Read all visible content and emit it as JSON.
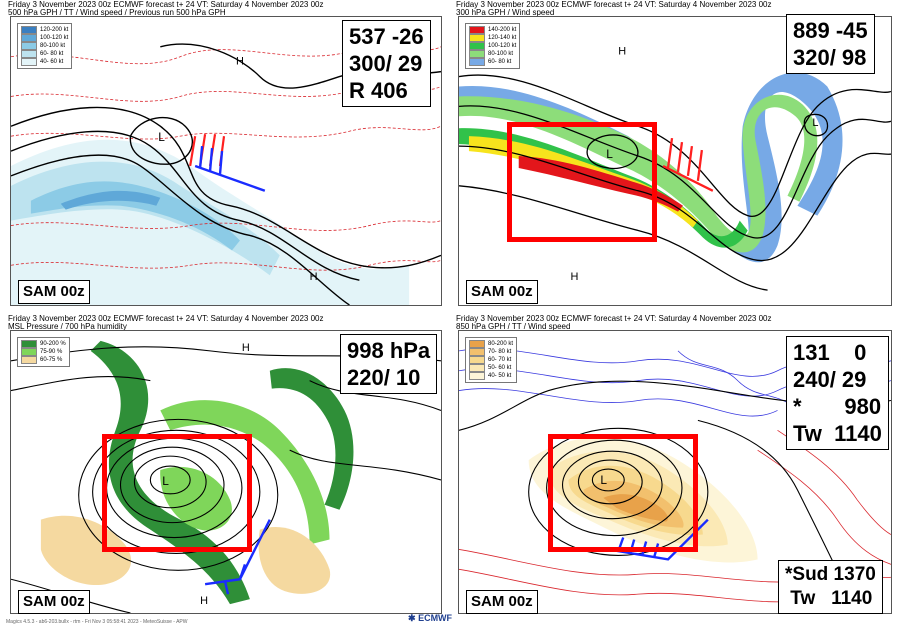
{
  "panels": [
    {
      "header_line1": "Friday      3 November  2023 00z ECMWF forecast t+ 24  VT: Saturday   4 November  2023 00z",
      "header_line2": "500 hPa GPH / TT / Wind speed / Previous run 500 hPa GPH",
      "legend": [
        {
          "label": "120-200 kt",
          "color": "#3a7fc1"
        },
        {
          "label": "100-120 kt",
          "color": "#5fa8d8"
        },
        {
          "label": "80-100 kt",
          "color": "#8ccbe6"
        },
        {
          "label": "60- 80 kt",
          "color": "#bde3ef"
        },
        {
          "label": "40- 60 kt",
          "color": "#e3f4f8"
        }
      ],
      "values": [
        "537 -26",
        "300/ 29",
        "R 406"
      ],
      "run_label": "SAM 00z"
    },
    {
      "header_line1": "Friday      3 November  2023 00z ECMWF forecast t+ 24  VT: Saturday   4 November  2023 00z",
      "header_line2": "300 hPa GPH / Wind speed",
      "legend": [
        {
          "label": "140-200 kt",
          "color": "#e3161b"
        },
        {
          "label": "120-140 kt",
          "color": "#f7e41d"
        },
        {
          "label": "100-120 kt",
          "color": "#31c24a"
        },
        {
          "label": "80-100 kt",
          "color": "#8ddd7a"
        },
        {
          "label": "60- 80 kt",
          "color": "#77a9e6"
        }
      ],
      "values": [
        "889 -45",
        "320/ 98"
      ],
      "run_label": "SAM 00z"
    },
    {
      "header_line1": "Friday      3 November  2023 00z ECMWF forecast t+ 24  VT: Saturday   4 November  2023 00z",
      "header_line2": "MSL Pressure / 700 hPa humidity",
      "legend": [
        {
          "label": "90-200 %",
          "color": "#2f8f38"
        },
        {
          "label": "75-90 %",
          "color": "#7fd65a"
        },
        {
          "label": "60-75 %",
          "color": "#f5d9a0"
        }
      ],
      "values": [
        "998 hPa",
        "220/ 10"
      ],
      "run_label": "SAM 00z"
    },
    {
      "header_line1": "Friday      3 November  2023 00z ECMWF forecast t+ 24  VT: Saturday   4 November  2023 00z",
      "header_line2": "850 hPa GPH / TT / Wind speed",
      "legend": [
        {
          "label": "80-200 kt",
          "color": "#e8a24a"
        },
        {
          "label": "70- 80 kt",
          "color": "#f2c06d"
        },
        {
          "label": "60- 70 kt",
          "color": "#f7d98e"
        },
        {
          "label": "50- 60 kt",
          "color": "#fbe9b5"
        },
        {
          "label": "40- 50 kt",
          "color": "#fdf5d8"
        }
      ],
      "values": [
        "131    0",
        "240/ 29",
        "*       980",
        "Tw  1140"
      ],
      "values_bottom": [
        "*Sud 1370",
        " Tw   1140"
      ],
      "run_label": "SAM 00z"
    }
  ],
  "colors": {
    "highlight_box": "#ff0000",
    "wind_barbs_blue": "#1a2cff",
    "wind_barbs_red": "#ff2020"
  },
  "footer_text": "Magics 4.5.3 - ab6-203.bullx - rtm - Fri Nov  3 05:58:41 2023 - MeteoSuisse - APW",
  "logo_text": "ECMWF"
}
